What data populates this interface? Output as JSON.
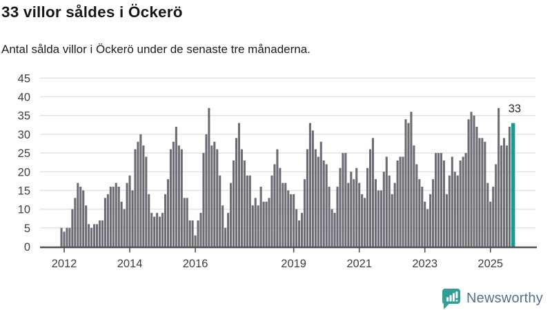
{
  "header": {
    "title": "33 villor såldes i Öckerö",
    "subtitle": "Antal sålda villor i Öckerö under de senaste tre månaderna."
  },
  "chart_data": {
    "type": "bar",
    "title": "33 villor såldes i Öckerö",
    "subtitle": "Antal sålda villor i Öckerö under de senaste tre månaderna.",
    "start_month": "2012-01",
    "end_month": "2025-10",
    "frequency": "monthly",
    "ylim": [
      0,
      45
    ],
    "grid": true,
    "y_ticks": [
      0,
      5,
      10,
      15,
      20,
      25,
      30,
      35,
      40,
      45
    ],
    "year_labels": [
      {
        "label": "2012",
        "month_index": 0
      },
      {
        "label": "2014",
        "month_index": 24
      },
      {
        "label": "2016",
        "month_index": 48
      },
      {
        "label": "2019",
        "month_index": 84
      },
      {
        "label": "2021",
        "month_index": 108
      },
      {
        "label": "2023",
        "month_index": 132
      },
      {
        "label": "2025",
        "month_index": 156
      }
    ],
    "values": [
      5,
      4,
      5,
      5,
      10,
      13,
      17,
      16,
      15,
      11,
      6,
      5,
      6,
      6,
      7,
      7,
      13,
      14,
      16,
      16,
      17,
      16,
      12,
      10,
      17,
      19,
      15,
      26,
      28,
      30,
      27,
      24,
      14,
      9,
      8,
      9,
      8,
      9,
      14,
      18,
      26,
      28,
      32,
      27,
      26,
      13,
      13,
      7,
      7,
      3,
      7,
      9,
      25,
      30,
      37,
      27,
      28,
      26,
      19,
      11,
      5,
      9,
      17,
      23,
      29,
      33,
      26,
      23,
      19,
      19,
      11,
      13,
      11,
      16,
      12,
      12,
      13,
      19,
      22,
      26,
      21,
      17,
      17,
      15,
      14,
      14,
      10,
      7,
      9,
      18,
      26,
      33,
      31,
      26,
      24,
      28,
      23,
      22,
      16,
      10,
      9,
      16,
      21,
      25,
      25,
      17,
      20,
      18,
      21,
      17,
      14,
      13,
      21,
      26,
      29,
      18,
      15,
      15,
      20,
      24,
      19,
      14,
      17,
      23,
      24,
      24,
      34,
      33,
      36,
      27,
      22,
      18,
      16,
      12,
      10,
      14,
      18,
      25,
      25,
      25,
      23,
      14,
      19,
      24,
      20,
      19,
      23,
      24,
      25,
      34,
      36,
      35,
      32,
      29,
      29,
      28,
      17,
      12,
      16,
      22,
      37,
      27,
      29,
      27,
      32,
      33
    ],
    "highlight_last": true,
    "highlight_label": "33"
  },
  "colors": {
    "bar": "#6c6c74",
    "highlight": "#1b9a92",
    "grid": "#e0e0e0",
    "axis": "#4f4f4f",
    "tick_label": "#3e3e3e",
    "annotation": "#2a2a2a",
    "logo_teal": "#2f9f97",
    "logo_text": "#52718a"
  },
  "logo": {
    "text": "Newsworthy",
    "icon": "newsworthy-bars-exclamation-icon"
  }
}
